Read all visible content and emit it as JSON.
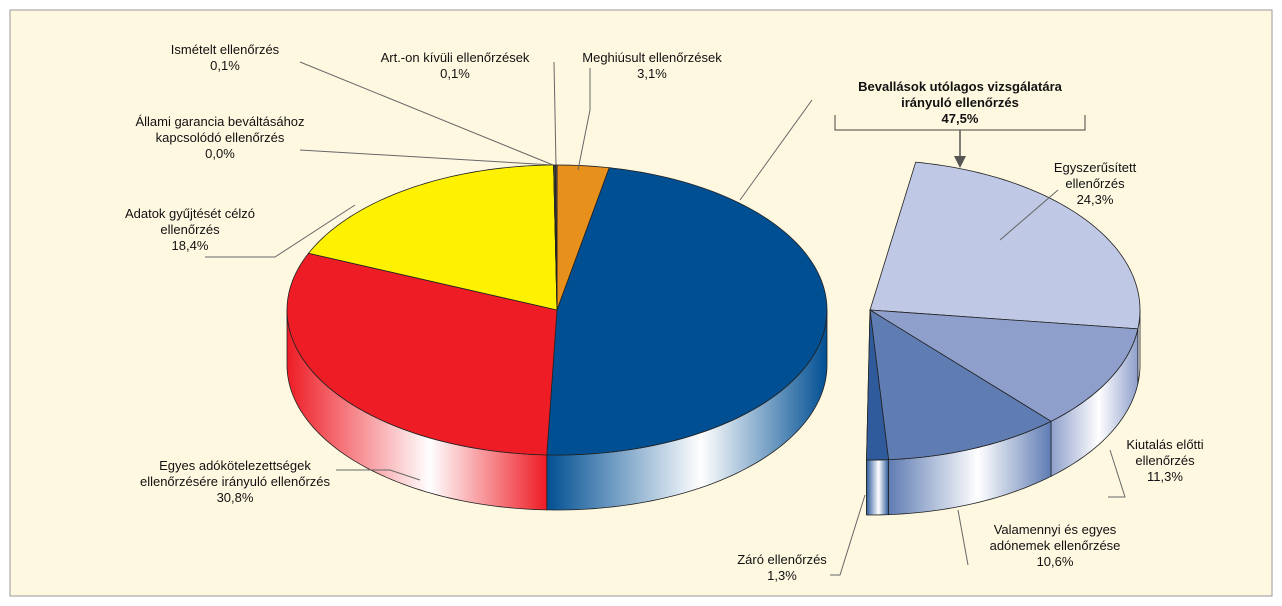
{
  "chart_data": {
    "type": "pie",
    "categories": [
      "Meghiúsult ellenőrzések",
      "Bevallások utólagos vizsgálatára\nirányuló ellenőrzés",
      "Egyes  adókötelezettségek\nellenőrzésére irányuló ellenőrzés",
      "Adatok gyűjtését célzó\nellenőrzés",
      "Állami garancia beváltásához\nkapcsolódó ellenőrzés",
      "Ismételt ellenőrzés",
      "Art.-on kívüli ellenőrzések"
    ],
    "values": [
      3.1,
      47.5,
      30.8,
      18.4,
      0.0,
      0.1,
      0.1
    ],
    "value_labels": [
      "3,1%",
      "47,5%",
      "30,8%",
      "18,4%",
      "0,0%",
      "0,1%",
      "0,1%"
    ],
    "colors": [
      "#e8901c",
      "#014f93",
      "#ee1c25",
      "#fff200",
      "#333333",
      "#444444",
      "#555555"
    ],
    "sub_pie": {
      "categories": [
        "Egyszerűsített\nellenőrzés",
        "Kiutalás előtti\nellenőrzés",
        "Valamennyi és egyes\nadónemek ellenőrzése",
        "Záró ellenőrzés"
      ],
      "values": [
        24.3,
        11.3,
        10.6,
        1.3
      ],
      "value_labels": [
        "24,3%",
        "11,3%",
        "10,6%",
        "1,3%"
      ],
      "colors": [
        "#bfc8e4",
        "#8e9fcb",
        "#5f7cb3",
        "#2f5b9c"
      ]
    }
  }
}
